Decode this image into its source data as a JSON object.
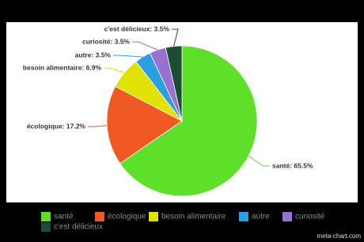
{
  "chart_data": {
    "type": "pie",
    "categories": [
      "santé",
      "écologique",
      "besoin alimentaire",
      "autre",
      "curiosité",
      "c'est délicieux"
    ],
    "values": [
      65.5,
      17.2,
      6.9,
      3.5,
      3.5,
      3.5
    ],
    "value_labels": [
      "santé: 65.5%",
      "écologique: 17.2%",
      "besoin alimentaire: 6.9%",
      "autre: 3.5%",
      "curiosité: 3.5%",
      "c'est délicieux: 3.5%"
    ],
    "colors": [
      "#5ee02a",
      "#f05a22",
      "#e2e200",
      "#2aa0e2",
      "#9a6fd2",
      "#1b4d33"
    ],
    "legend": "bottom",
    "watermark": "meta-chart.com"
  }
}
